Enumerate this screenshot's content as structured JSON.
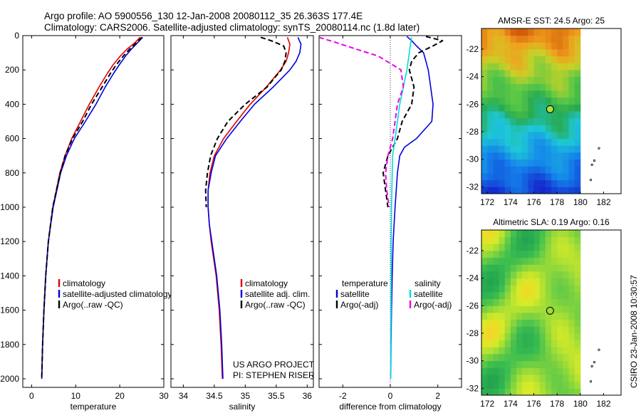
{
  "header": {
    "line1": "Argo profile: AO 5900556_130 12-Jan-2008 20080112_35 26.363S 177.4E",
    "line2": "Climatology: CARS2006. Satellite-adjusted climatology: synTS_20080114.nc (1.8d later)"
  },
  "stamp": "CSIRO 23-Jan-2008 10:30:57",
  "colors": {
    "climatology": "#e00000",
    "satellite": "#0000e0",
    "argo": "#000000",
    "sat_salinity": "#00dddd",
    "argo_adj_salinity": "#ee00ee"
  },
  "chart_data": [
    {
      "type": "line",
      "id": "temperature",
      "xlabel": "temperature",
      "ylabel": "",
      "xlim": [
        -2,
        30
      ],
      "ylim": [
        2050,
        0
      ],
      "xticks": [
        0,
        10,
        20,
        30
      ],
      "yticks": [
        0,
        200,
        400,
        600,
        800,
        1000,
        1200,
        1400,
        1600,
        1800,
        2000
      ],
      "series": [
        {
          "name": "climatology",
          "color": "#e00000",
          "style": "solid",
          "depth": [
            10,
            40,
            80,
            120,
            170,
            220,
            300,
            400,
            500,
            600,
            700,
            800,
            1000,
            1200,
            1400,
            1600,
            1800,
            2000
          ],
          "values": [
            24.6,
            23.5,
            21.6,
            20.1,
            18.5,
            17.2,
            15.3,
            13.1,
            11.1,
            9.1,
            7.6,
            6.4,
            4.8,
            3.8,
            3.2,
            2.8,
            2.5,
            2.3
          ]
        },
        {
          "name": "satellite-adjusted climatology",
          "color": "#0000e0",
          "style": "solid",
          "depth": [
            10,
            40,
            80,
            120,
            170,
            220,
            300,
            400,
            500,
            600,
            700,
            800,
            1000,
            1200,
            1400,
            1600,
            1800,
            2000
          ],
          "values": [
            25.2,
            24.1,
            22.6,
            21.3,
            19.9,
            18.6,
            16.7,
            14.6,
            12.2,
            9.7,
            7.9,
            6.6,
            4.9,
            3.8,
            3.2,
            2.8,
            2.5,
            2.3
          ]
        },
        {
          "name": "Argo(..raw -QC)",
          "color": "#000000",
          "style": "dashed",
          "depth": [
            10,
            40,
            80,
            120,
            170,
            220,
            300,
            400,
            500,
            600,
            700,
            800,
            1000,
            1200,
            1400,
            1600,
            1800,
            2000
          ],
          "values": [
            25.0,
            23.9,
            22.2,
            20.8,
            19.2,
            17.9,
            16.0,
            13.6,
            11.6,
            9.3,
            7.6,
            6.5,
            4.8,
            3.8,
            3.2,
            2.8,
            2.5,
            2.3
          ]
        }
      ],
      "legend": [
        "climatology",
        "satellite-adjusted climatology",
        "Argo(..raw -QC)"
      ]
    },
    {
      "type": "line",
      "id": "salinity",
      "xlabel": "salinity",
      "xlim": [
        33.8,
        36.1
      ],
      "ylim": [
        2050,
        0
      ],
      "xticks": [
        34,
        34.5,
        35,
        35.5,
        36
      ],
      "series": [
        {
          "name": "climatology",
          "color": "#e00000",
          "style": "solid",
          "depth": [
            10,
            50,
            100,
            150,
            200,
            300,
            400,
            500,
            600,
            700,
            800,
            900,
            1000,
            1100,
            1200,
            1400,
            1600,
            1800,
            2000
          ],
          "values": [
            35.68,
            35.72,
            35.7,
            35.66,
            35.57,
            35.34,
            35.08,
            34.86,
            34.65,
            34.5,
            34.43,
            34.4,
            34.4,
            34.42,
            34.45,
            34.53,
            34.58,
            34.61,
            34.63
          ]
        },
        {
          "name": "satellite adj. clim.",
          "color": "#0000e0",
          "style": "solid",
          "depth": [
            10,
            50,
            100,
            150,
            200,
            300,
            400,
            500,
            600,
            700,
            800,
            900,
            1000,
            1100,
            1200,
            1400,
            1600,
            1800,
            2000
          ],
          "values": [
            35.85,
            35.9,
            35.88,
            35.82,
            35.72,
            35.45,
            35.15,
            34.92,
            34.7,
            34.52,
            34.45,
            34.4,
            34.4,
            34.42,
            34.46,
            34.54,
            34.59,
            34.62,
            34.64
          ]
        },
        {
          "name": "Argo(..raw -QC)",
          "color": "#000000",
          "style": "dashed",
          "depth": [
            10,
            30,
            60,
            100,
            150,
            200,
            300,
            400,
            500,
            600,
            700,
            800,
            900,
            1000
          ],
          "values": [
            35.25,
            35.42,
            35.62,
            35.66,
            35.64,
            35.58,
            35.35,
            35.0,
            34.72,
            34.55,
            34.44,
            34.39,
            34.36,
            34.37
          ]
        }
      ],
      "legend": [
        "climatology",
        "satellite adj. clim.",
        "Argo(..raw -QC)"
      ],
      "annotations": [
        "US ARGO PROJECT",
        "PI: STEPHEN RISER"
      ]
    },
    {
      "type": "line",
      "id": "difference",
      "xlabel": "difference from climatology",
      "xlim": [
        -3,
        3
      ],
      "ylim": [
        2050,
        0
      ],
      "xticks": [
        -2,
        0,
        2
      ],
      "series": [
        {
          "name": "temperature satellite",
          "color": "#0000e0",
          "style": "solid",
          "depth": [
            5,
            30,
            60,
            100,
            150,
            200,
            300,
            400,
            500,
            600,
            650,
            700,
            800,
            1000,
            1200,
            1400,
            1600,
            1800,
            2000
          ],
          "values": [
            0.7,
            0.9,
            1.1,
            1.4,
            1.5,
            1.6,
            1.7,
            1.8,
            1.75,
            1.1,
            0.6,
            0.4,
            0.3,
            0.2,
            0.12,
            0.08,
            0.05,
            0.03,
            0.02
          ]
        },
        {
          "name": "temperature Argo(-adj)",
          "color": "#000000",
          "style": "dashed",
          "depth": [
            5,
            30,
            60,
            100,
            150,
            200,
            300,
            400,
            500,
            600,
            650,
            700,
            800,
            900,
            1000
          ],
          "values": [
            1.5,
            2.2,
            1.8,
            1.2,
            0.9,
            0.8,
            1.0,
            0.9,
            0.5,
            0.3,
            0.1,
            -0.1,
            -0.3,
            -0.2,
            -0.1
          ]
        },
        {
          "name": "salinity satellite",
          "color": "#00dddd",
          "style": "solid",
          "depth": [
            10,
            50,
            100,
            150,
            200,
            300,
            400,
            500,
            600,
            700,
            800,
            1000,
            1200,
            1400,
            1600,
            1800,
            2000
          ],
          "values": [
            0.9,
            0.85,
            0.8,
            0.75,
            0.7,
            0.55,
            0.4,
            0.3,
            0.2,
            0.1,
            0.08,
            0.05,
            0.04,
            0.04,
            0.03,
            0.02,
            0.02
          ]
        },
        {
          "name": "salinity Argo(-adj)",
          "color": "#ee00ee",
          "style": "dashed",
          "depth": [
            10,
            40,
            80,
            120,
            200,
            300,
            400,
            500,
            600,
            700,
            800,
            900,
            1000
          ],
          "values": [
            -3.0,
            -2.3,
            -1.4,
            -0.5,
            0.45,
            0.55,
            0.3,
            0.2,
            0.1,
            -0.1,
            -0.2,
            -0.15,
            -0.05
          ]
        }
      ],
      "legend_headers": [
        "temperature",
        "salinity"
      ],
      "legend": [
        "satellite",
        "Argo(-adj)",
        "satellite",
        "Argo(-adj)"
      ]
    },
    {
      "type": "heatmap",
      "id": "sst_map",
      "title": "AMSR-E SST: 24.5 Argo: 25",
      "xlim": [
        171.5,
        183.5
      ],
      "ylim": [
        -32.5,
        -20.5
      ],
      "xticks": [
        172,
        174,
        176,
        178,
        180,
        182
      ],
      "yticks": [
        -22,
        -24,
        -26,
        -28,
        -30,
        -32
      ],
      "marker": {
        "lon": 177.4,
        "lat": -26.363
      }
    },
    {
      "type": "heatmap",
      "id": "sla_map",
      "title": "Altimetric SLA: 0.19 Argo: 0.16",
      "xlim": [
        171.5,
        183.5
      ],
      "ylim": [
        -32.5,
        -20.5
      ],
      "xticks": [
        172,
        174,
        176,
        178,
        180,
        182
      ],
      "yticks": [
        -22,
        -24,
        -26,
        -28,
        -30,
        -32
      ],
      "marker": {
        "lon": 177.4,
        "lat": -26.363
      }
    }
  ]
}
